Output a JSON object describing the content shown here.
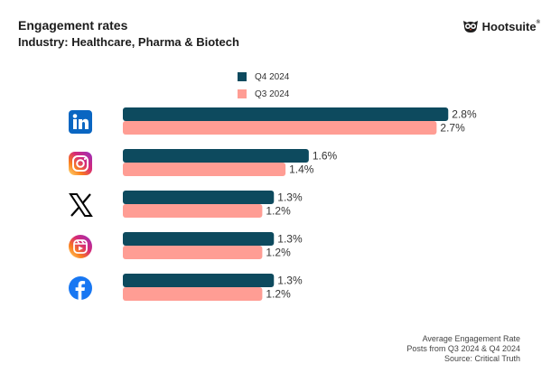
{
  "header": {
    "title": "Engagement rates",
    "subtitle": "Industry: Healthcare, Pharma & Biotech",
    "brand": "Hootsuite",
    "brand_mark": "®"
  },
  "colors": {
    "q4": "#0d4a5e",
    "q3": "#ff9d94",
    "label": "#333333"
  },
  "icons": [
    "linkedin-icon",
    "instagram-icon",
    "x-icon",
    "instagram-reels-icon",
    "facebook-icon"
  ],
  "footer": {
    "line1": "Average Engagement Rate",
    "line2": "Posts from Q3 2024 & Q4 2024",
    "line3": "Source: Critical Truth"
  },
  "chart_data": {
    "type": "bar",
    "orientation": "horizontal",
    "categories": [
      "LinkedIn",
      "Instagram",
      "X",
      "Instagram Reels",
      "Facebook"
    ],
    "series": [
      {
        "name": "Q4 2024",
        "values": [
          2.8,
          1.6,
          1.3,
          1.3,
          1.3
        ],
        "labels": [
          "2.8%",
          "1.6%",
          "1.3%",
          "1.3%",
          "1.3%"
        ]
      },
      {
        "name": "Q3 2024",
        "values": [
          2.7,
          1.4,
          1.2,
          1.2,
          1.2
        ],
        "labels": [
          "2.7%",
          "1.4%",
          "1.2%",
          "1.2%",
          "1.2%"
        ]
      }
    ],
    "xlim": [
      0,
      3.0
    ],
    "grid": false,
    "legend": "top-center"
  }
}
